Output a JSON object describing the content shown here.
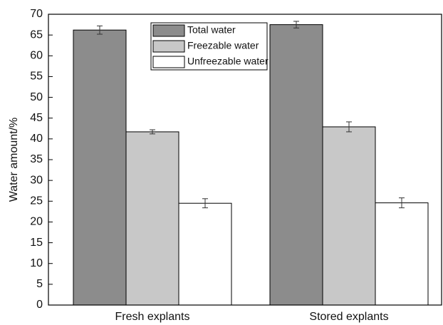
{
  "chart_data": {
    "type": "bar",
    "y_label": "Water amount/%",
    "categories": [
      "Fresh explants",
      "Stored explants"
    ],
    "series": [
      {
        "name": "Total water",
        "color": "#8c8c8c",
        "values": [
          66.2,
          67.5
        ],
        "errors": [
          1.0,
          0.8
        ]
      },
      {
        "name": "Freezable water",
        "color": "#c8c8c8",
        "values": [
          41.7,
          42.9
        ],
        "errors": [
          0.5,
          1.2
        ]
      },
      {
        "name": "Unfreezable water",
        "color": "#ffffff",
        "values": [
          24.5,
          24.6
        ],
        "errors": [
          1.1,
          1.2
        ]
      }
    ],
    "ylim": [
      0,
      70
    ],
    "yticks": [
      0,
      5,
      10,
      15,
      20,
      25,
      30,
      35,
      40,
      45,
      50,
      55,
      60,
      65,
      70
    ],
    "legend": "top"
  }
}
